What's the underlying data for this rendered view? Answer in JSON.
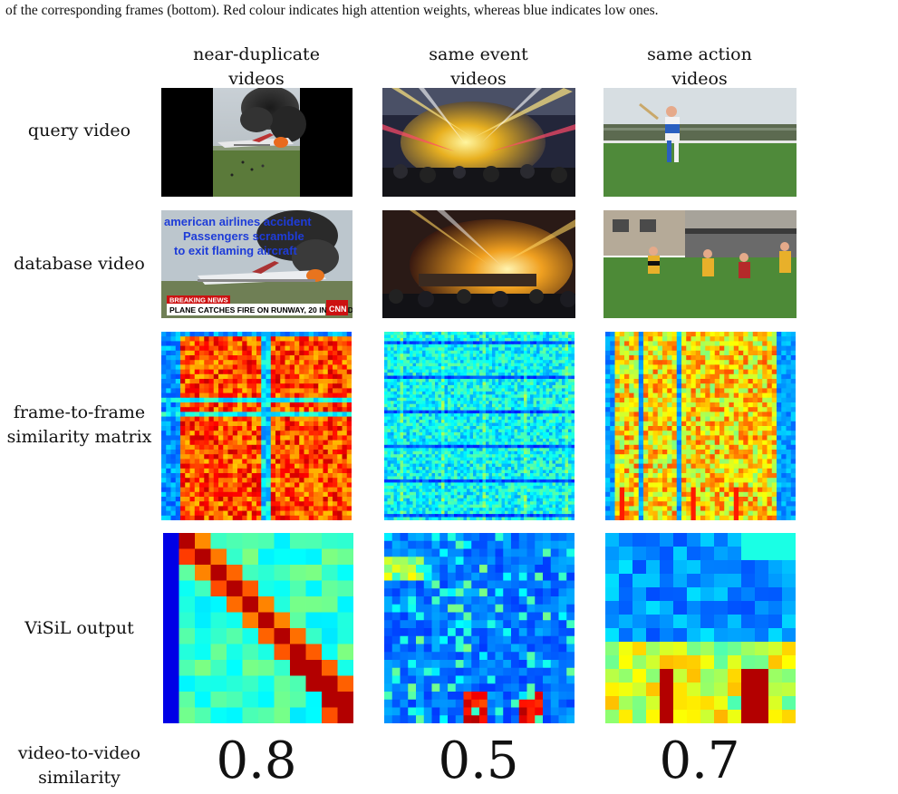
{
  "caption": {
    "line1": "of the corresponding frames (bottom). Red colour indicates high attention weights, whereas blue indicates low ones."
  },
  "columns": [
    {
      "line1": "near-duplicate",
      "line2": "videos"
    },
    {
      "line1": "same event",
      "line2": "videos"
    },
    {
      "line1": "same action",
      "line2": "videos"
    }
  ],
  "rows": {
    "query": "query video",
    "database": "database video",
    "matrix_line1": "frame-to-frame",
    "matrix_line2": "similarity matrix",
    "visil": "ViSiL output",
    "v2v_line1": "video-to-video",
    "v2v_line2": "similarity"
  },
  "news_frame": {
    "overlay_line1": "american airlines accident",
    "overlay_line2": "Passengers scramble",
    "overlay_line3": "to exit flaming aircraft",
    "breaking": "BREAKING NEWS",
    "headline": "PLANE CATCHES FIRE ON RUNWAY, 20 INJURED",
    "logo": "CNN"
  },
  "scores": [
    "0.8",
    "0.5",
    "0.7"
  ]
}
